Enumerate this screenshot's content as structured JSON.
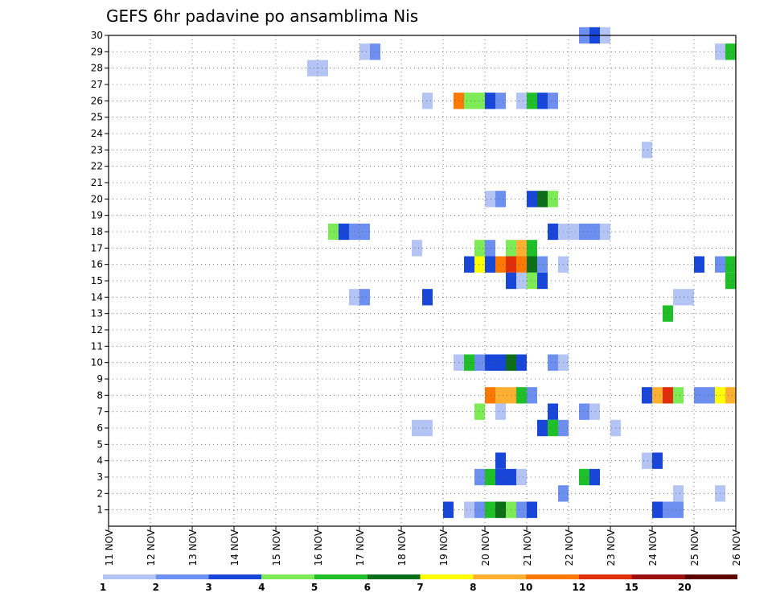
{
  "chart_data": {
    "type": "heatmap",
    "title": "GEFS 6hr padavine po ansamblima Nis",
    "xlabel": "",
    "ylabel": "",
    "x_tick_labels": [
      "11 NOV",
      "12 NOV",
      "13 NOV",
      "14 NOV",
      "15 NOV",
      "16 NOV",
      "17 NOV",
      "18 NOV",
      "19 NOV",
      "20 NOV",
      "21 NOV",
      "22 NOV",
      "23 NOV",
      "24 NOV",
      "25 NOV",
      "26 NOV"
    ],
    "y_tick_labels": [
      "1",
      "2",
      "3",
      "4",
      "5",
      "6",
      "7",
      "8",
      "9",
      "10",
      "11",
      "12",
      "13",
      "14",
      "15",
      "16",
      "17",
      "18",
      "19",
      "20",
      "21",
      "22",
      "23",
      "24",
      "25",
      "26",
      "27",
      "28",
      "29",
      "30"
    ],
    "x_unit": "6-hour step from 11 NOV 00Z (4 steps per day)",
    "x_range": [
      0,
      60
    ],
    "y_range": [
      0,
      30
    ],
    "grid": true,
    "legend": {
      "placement": "bottom",
      "labels": [
        "1",
        "2",
        "3",
        "4",
        "5",
        "6",
        "7",
        "8",
        "10",
        "12",
        "15",
        "20"
      ],
      "colors": [
        "#b4c5f5",
        "#6d8ff0",
        "#1846d9",
        "#7deb55",
        "#1fbf2a",
        "#0d6e19",
        "#ffff00",
        "#ffb030",
        "#ff7800",
        "#e02e0a",
        "#9e0f0f",
        "#5c0000"
      ]
    },
    "cells": [
      {
        "member": 30,
        "step": 46,
        "bin": 1
      },
      {
        "member": 30,
        "step": 47,
        "bin": 2
      },
      {
        "member": 30,
        "step": 48,
        "bin": 0
      },
      {
        "member": 29,
        "step": 25,
        "bin": 0
      },
      {
        "member": 29,
        "step": 26,
        "bin": 1
      },
      {
        "member": 29,
        "step": 59,
        "bin": 0
      },
      {
        "member": 29,
        "step": 60,
        "bin": 4
      },
      {
        "member": 28,
        "step": 20,
        "bin": 0
      },
      {
        "member": 28,
        "step": 21,
        "bin": 0
      },
      {
        "member": 26,
        "step": 31,
        "bin": 0
      },
      {
        "member": 26,
        "step": 34,
        "bin": 8
      },
      {
        "member": 26,
        "step": 35,
        "bin": 3
      },
      {
        "member": 26,
        "step": 36,
        "bin": 3
      },
      {
        "member": 26,
        "step": 37,
        "bin": 2
      },
      {
        "member": 26,
        "step": 38,
        "bin": 1
      },
      {
        "member": 26,
        "step": 40,
        "bin": 0
      },
      {
        "member": 26,
        "step": 41,
        "bin": 4
      },
      {
        "member": 26,
        "step": 42,
        "bin": 2
      },
      {
        "member": 26,
        "step": 43,
        "bin": 1
      },
      {
        "member": 23,
        "step": 52,
        "bin": 0
      },
      {
        "member": 20,
        "step": 37,
        "bin": 0
      },
      {
        "member": 20,
        "step": 38,
        "bin": 1
      },
      {
        "member": 20,
        "step": 41,
        "bin": 2
      },
      {
        "member": 20,
        "step": 42,
        "bin": 5
      },
      {
        "member": 20,
        "step": 43,
        "bin": 3
      },
      {
        "member": 18,
        "step": 22,
        "bin": 3
      },
      {
        "member": 18,
        "step": 23,
        "bin": 2
      },
      {
        "member": 18,
        "step": 24,
        "bin": 1
      },
      {
        "member": 18,
        "step": 25,
        "bin": 1
      },
      {
        "member": 18,
        "step": 43,
        "bin": 2
      },
      {
        "member": 18,
        "step": 44,
        "bin": 0
      },
      {
        "member": 18,
        "step": 45,
        "bin": 0
      },
      {
        "member": 18,
        "step": 46,
        "bin": 1
      },
      {
        "member": 18,
        "step": 47,
        "bin": 1
      },
      {
        "member": 18,
        "step": 48,
        "bin": 0
      },
      {
        "member": 17,
        "step": 30,
        "bin": 0
      },
      {
        "member": 17,
        "step": 36,
        "bin": 3
      },
      {
        "member": 17,
        "step": 37,
        "bin": 1
      },
      {
        "member": 17,
        "step": 39,
        "bin": 3
      },
      {
        "member": 17,
        "step": 40,
        "bin": 7
      },
      {
        "member": 17,
        "step": 41,
        "bin": 4
      },
      {
        "member": 16,
        "step": 35,
        "bin": 2
      },
      {
        "member": 16,
        "step": 36,
        "bin": 6
      },
      {
        "member": 16,
        "step": 37,
        "bin": 2
      },
      {
        "member": 16,
        "step": 38,
        "bin": 8
      },
      {
        "member": 16,
        "step": 39,
        "bin": 9
      },
      {
        "member": 16,
        "step": 40,
        "bin": 8
      },
      {
        "member": 16,
        "step": 41,
        "bin": 5
      },
      {
        "member": 16,
        "step": 42,
        "bin": 1
      },
      {
        "member": 16,
        "step": 44,
        "bin": 0
      },
      {
        "member": 16,
        "step": 57,
        "bin": 2
      },
      {
        "member": 16,
        "step": 59,
        "bin": 1
      },
      {
        "member": 16,
        "step": 60,
        "bin": 4
      },
      {
        "member": 15,
        "step": 39,
        "bin": 2
      },
      {
        "member": 15,
        "step": 40,
        "bin": 0
      },
      {
        "member": 15,
        "step": 41,
        "bin": 3
      },
      {
        "member": 15,
        "step": 42,
        "bin": 2
      },
      {
        "member": 15,
        "step": 60,
        "bin": 4
      },
      {
        "member": 14,
        "step": 24,
        "bin": 0
      },
      {
        "member": 14,
        "step": 25,
        "bin": 1
      },
      {
        "member": 14,
        "step": 31,
        "bin": 2
      },
      {
        "member": 14,
        "step": 55,
        "bin": 0
      },
      {
        "member": 14,
        "step": 56,
        "bin": 0
      },
      {
        "member": 13,
        "step": 54,
        "bin": 4
      },
      {
        "member": 10,
        "step": 34,
        "bin": 0
      },
      {
        "member": 10,
        "step": 35,
        "bin": 4
      },
      {
        "member": 10,
        "step": 36,
        "bin": 1
      },
      {
        "member": 10,
        "step": 37,
        "bin": 2
      },
      {
        "member": 10,
        "step": 38,
        "bin": 2
      },
      {
        "member": 10,
        "step": 39,
        "bin": 5
      },
      {
        "member": 10,
        "step": 40,
        "bin": 2
      },
      {
        "member": 10,
        "step": 43,
        "bin": 1
      },
      {
        "member": 10,
        "step": 44,
        "bin": 0
      },
      {
        "member": 8,
        "step": 37,
        "bin": 8
      },
      {
        "member": 8,
        "step": 38,
        "bin": 7
      },
      {
        "member": 8,
        "step": 39,
        "bin": 7
      },
      {
        "member": 8,
        "step": 40,
        "bin": 4
      },
      {
        "member": 8,
        "step": 41,
        "bin": 1
      },
      {
        "member": 8,
        "step": 52,
        "bin": 2
      },
      {
        "member": 8,
        "step": 53,
        "bin": 7
      },
      {
        "member": 8,
        "step": 54,
        "bin": 9
      },
      {
        "member": 8,
        "step": 55,
        "bin": 3
      },
      {
        "member": 8,
        "step": 57,
        "bin": 1
      },
      {
        "member": 8,
        "step": 58,
        "bin": 1
      },
      {
        "member": 8,
        "step": 59,
        "bin": 6
      },
      {
        "member": 8,
        "step": 60,
        "bin": 7
      },
      {
        "member": 7,
        "step": 36,
        "bin": 3
      },
      {
        "member": 7,
        "step": 38,
        "bin": 0
      },
      {
        "member": 7,
        "step": 43,
        "bin": 2
      },
      {
        "member": 7,
        "step": 46,
        "bin": 1
      },
      {
        "member": 7,
        "step": 47,
        "bin": 0
      },
      {
        "member": 6,
        "step": 30,
        "bin": 0
      },
      {
        "member": 6,
        "step": 31,
        "bin": 0
      },
      {
        "member": 6,
        "step": 42,
        "bin": 2
      },
      {
        "member": 6,
        "step": 43,
        "bin": 4
      },
      {
        "member": 6,
        "step": 44,
        "bin": 1
      },
      {
        "member": 6,
        "step": 49,
        "bin": 0
      },
      {
        "member": 4,
        "step": 38,
        "bin": 2
      },
      {
        "member": 4,
        "step": 52,
        "bin": 0
      },
      {
        "member": 4,
        "step": 53,
        "bin": 2
      },
      {
        "member": 3,
        "step": 36,
        "bin": 1
      },
      {
        "member": 3,
        "step": 37,
        "bin": 4
      },
      {
        "member": 3,
        "step": 38,
        "bin": 2
      },
      {
        "member": 3,
        "step": 39,
        "bin": 2
      },
      {
        "member": 3,
        "step": 40,
        "bin": 0
      },
      {
        "member": 3,
        "step": 46,
        "bin": 4
      },
      {
        "member": 3,
        "step": 47,
        "bin": 2
      },
      {
        "member": 2,
        "step": 44,
        "bin": 1
      },
      {
        "member": 2,
        "step": 55,
        "bin": 0
      },
      {
        "member": 2,
        "step": 59,
        "bin": 0
      },
      {
        "member": 1,
        "step": 33,
        "bin": 2
      },
      {
        "member": 1,
        "step": 35,
        "bin": 0
      },
      {
        "member": 1,
        "step": 36,
        "bin": 1
      },
      {
        "member": 1,
        "step": 37,
        "bin": 4
      },
      {
        "member": 1,
        "step": 38,
        "bin": 5
      },
      {
        "member": 1,
        "step": 39,
        "bin": 3
      },
      {
        "member": 1,
        "step": 40,
        "bin": 1
      },
      {
        "member": 1,
        "step": 41,
        "bin": 2
      },
      {
        "member": 1,
        "step": 53,
        "bin": 2
      },
      {
        "member": 1,
        "step": 54,
        "bin": 1
      },
      {
        "member": 1,
        "step": 55,
        "bin": 1
      }
    ]
  }
}
